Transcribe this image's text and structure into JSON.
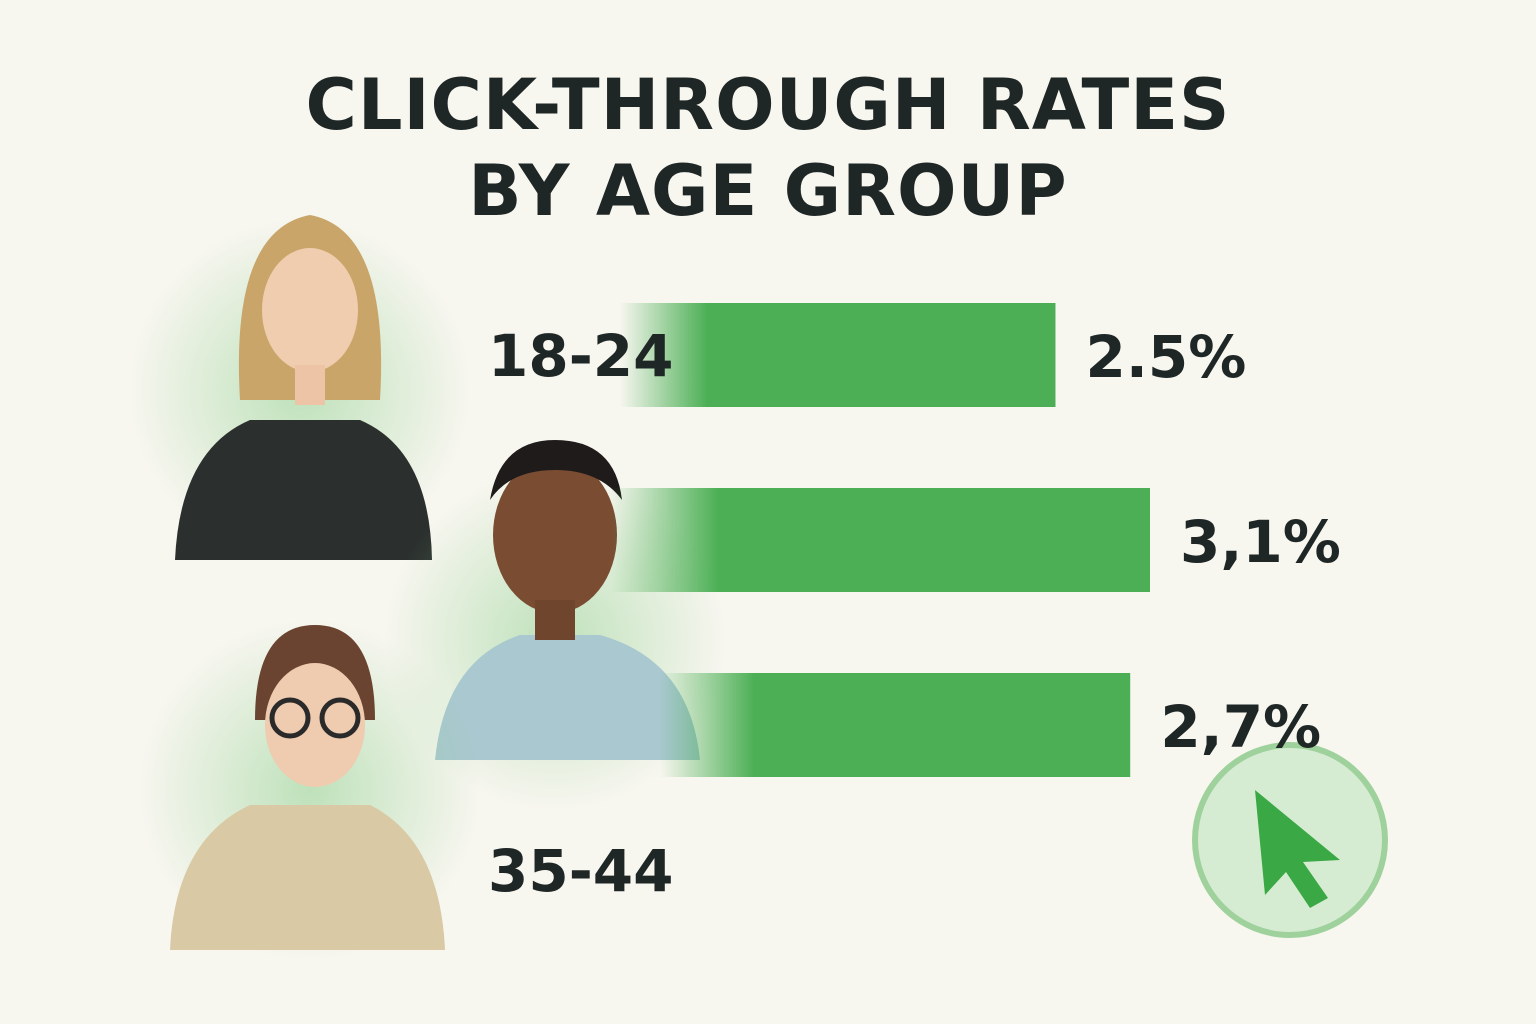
{
  "chart_data": {
    "type": "bar",
    "orientation": "horizontal",
    "title": "CLICK-THROUGH RATES BY AGE GROUP",
    "categories": [
      "18-24",
      null,
      "35-44"
    ],
    "values": [
      2.5,
      3.1,
      2.7
    ],
    "value_labels": [
      "2.5%",
      "3,1%",
      "2,7%"
    ],
    "color": "#3aa845"
  }
}
